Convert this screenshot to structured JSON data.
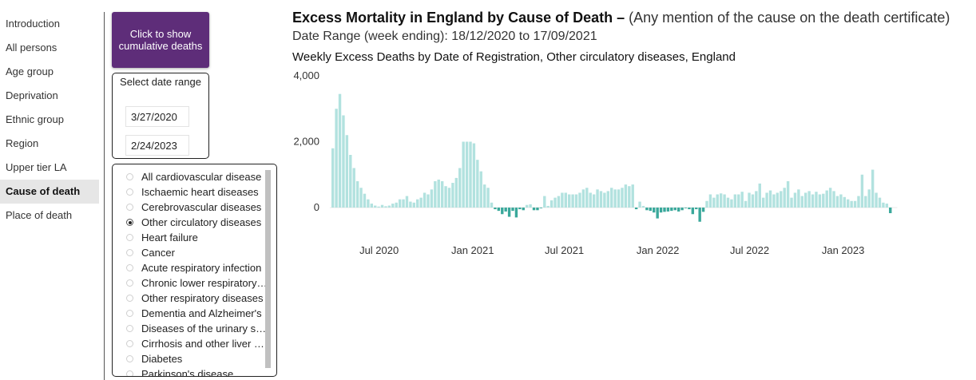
{
  "nav": {
    "items": [
      {
        "label": "Introduction",
        "active": false
      },
      {
        "label": "All persons",
        "active": false
      },
      {
        "label": "Age group",
        "active": false
      },
      {
        "label": "Deprivation",
        "active": false
      },
      {
        "label": "Ethnic group",
        "active": false
      },
      {
        "label": "Region",
        "active": false
      },
      {
        "label": "Upper tier LA",
        "active": false
      },
      {
        "label": "Cause of death",
        "active": true
      },
      {
        "label": "Place of death",
        "active": false
      }
    ]
  },
  "cumulative_button": {
    "line1": "Click to show",
    "line2": "cumulative deaths",
    "color": "#5e2d79"
  },
  "date_filter": {
    "title": "Select date range",
    "start": "3/27/2020",
    "end": "2/24/2023"
  },
  "causes": {
    "selected": "Other circulatory diseases",
    "items": [
      "All cardiovascular disease",
      "Ischaemic heart diseases",
      "Cerebrovascular diseases",
      "Other circulatory diseases",
      "Heart failure",
      "Cancer",
      "Acute respiratory infection",
      "Chronic lower respiratory…",
      "Other respiratory diseases",
      "Dementia and Alzheimer's",
      "Diseases of the urinary s…",
      "Cirrhosis and other liver …",
      "Diabetes",
      "Parkinson's disease"
    ]
  },
  "header": {
    "title": "Excess Mortality in England by Cause of Death –",
    "subtitle": "(Any mention of the cause on the death certificate)",
    "date_range": "Date Range (week ending): 18/12/2020 to 17/09/2021",
    "chart_title": "Weekly Excess Deaths by Date of Registration, Other circulatory diseases, England"
  },
  "chart_data": {
    "type": "bar",
    "xlabel": "",
    "ylabel": "",
    "ylim": [
      -500,
      4000
    ],
    "y_ticks": [
      {
        "value": 0,
        "label": "0"
      },
      {
        "value": 2000,
        "label": "2,000"
      },
      {
        "value": 4000,
        "label": "4,000"
      }
    ],
    "x_ticks": [
      {
        "week": 13.5,
        "label": "Jul 2020"
      },
      {
        "week": 40,
        "label": "Jan 2021"
      },
      {
        "week": 66,
        "label": "Jul 2021"
      },
      {
        "week": 92.5,
        "label": "Jan 2022"
      },
      {
        "week": 118.5,
        "label": "Jul 2022"
      },
      {
        "week": 145,
        "label": "Jan 2023"
      }
    ],
    "highlight_range": [
      37,
      74
    ],
    "highlight_color": "#3aa89b",
    "base_color": "#b2e2df",
    "values": [
      1800,
      3000,
      3450,
      2800,
      2200,
      1600,
      1200,
      800,
      600,
      420,
      250,
      120,
      60,
      30,
      80,
      40,
      60,
      120,
      150,
      250,
      250,
      350,
      180,
      150,
      250,
      300,
      450,
      400,
      550,
      800,
      850,
      800,
      650,
      600,
      750,
      900,
      1200,
      2000,
      2000,
      2000,
      1950,
      1450,
      1100,
      700,
      600,
      150,
      -50,
      -100,
      -200,
      -120,
      -280,
      -100,
      -300,
      -50,
      -80,
      80,
      100,
      -80,
      -80,
      -20,
      350,
      50,
      220,
      300,
      350,
      450,
      450,
      400,
      400,
      400,
      450,
      550,
      600,
      450,
      400,
      550,
      500,
      450,
      500,
      600,
      550,
      550,
      600,
      700,
      650,
      700,
      -50,
      180,
      50,
      -80,
      -100,
      -150,
      -330,
      -150,
      -130,
      -120,
      -100,
      -80,
      -120,
      -80,
      -20,
      -50,
      -200,
      -50,
      -430,
      -130,
      200,
      400,
      300,
      400,
      430,
      400,
      300,
      250,
      400,
      400,
      480,
      200,
      450,
      400,
      500,
      730,
      300,
      450,
      520,
      400,
      450,
      500,
      600,
      800,
      300,
      450,
      550,
      350,
      450,
      500,
      400,
      480,
      400,
      420,
      520,
      600,
      500,
      350,
      400,
      320,
      250,
      200,
      200,
      350,
      1000,
      350,
      550,
      1150,
      450,
      300,
      150,
      120,
      -170
    ]
  }
}
